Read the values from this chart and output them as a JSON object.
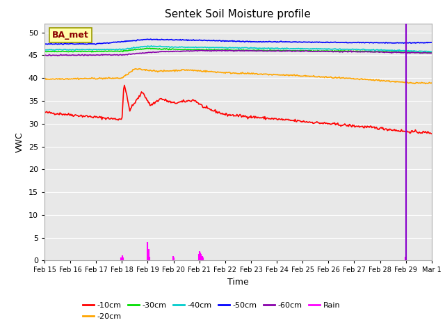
{
  "title": "Sentek Soil Moisture profile",
  "xlabel": "Time",
  "ylabel": "VWC",
  "legend_label": "BA_met",
  "ylim": [
    0,
    52
  ],
  "yticks": [
    0,
    5,
    10,
    15,
    20,
    25,
    30,
    35,
    40,
    45,
    50
  ],
  "x_tick_labels": [
    "Feb 15",
    "Feb 16",
    "Feb 17",
    "Feb 18",
    "Feb 19",
    "Feb 20",
    "Feb 21",
    "Feb 22",
    "Feb 23",
    "Feb 24",
    "Feb 25",
    "Feb 26",
    "Feb 27",
    "Feb 28",
    "Feb 29",
    "Mar 1"
  ],
  "bg_color": "#e8e8e8",
  "fig_bg_color": "#ffffff",
  "vline_color": "#8800cc",
  "line_colors": {
    "10cm": "#ff0000",
    "20cm": "#ffa500",
    "30cm": "#00dd00",
    "40cm": "#00cccc",
    "50cm": "#0000ff",
    "60cm": "#8800aa",
    "rain": "#ff00ff"
  },
  "line_widths": {
    "10cm": 1.2,
    "20cm": 1.2,
    "30cm": 1.2,
    "40cm": 1.2,
    "50cm": 1.2,
    "60cm": 1.2,
    "rain": 1.0
  },
  "legend_entries": [
    "-10cm",
    "-20cm",
    "-30cm",
    "-40cm",
    "-50cm",
    "-60cm",
    "Rain"
  ],
  "figsize": [
    6.4,
    4.8
  ],
  "dpi": 100
}
